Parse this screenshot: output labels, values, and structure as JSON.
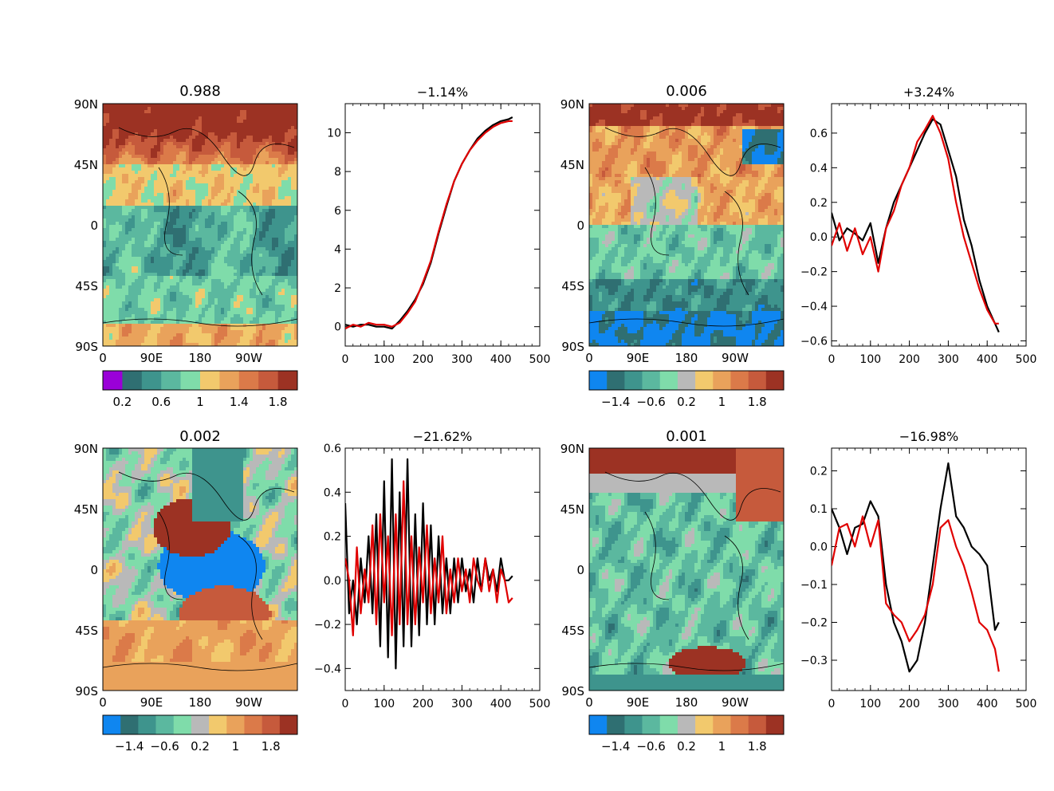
{
  "maps": [
    {
      "title": "0.988",
      "lat_labels": [
        "90N",
        "45N",
        "0",
        "45S",
        "90S"
      ],
      "lon_labels": [
        "0",
        "90E",
        "180",
        "90W"
      ],
      "colorbar": {
        "colors": [
          "#9a00d8",
          "#2f6f72",
          "#3e948d",
          "#5bb89f",
          "#7fdcaa",
          "#f2c96d",
          "#e9a25b",
          "#db7a49",
          "#c65a3c",
          "#9c3223"
        ],
        "tick_labels": [
          "0.2",
          "0.6",
          "1",
          "1.4",
          "1.8"
        ]
      },
      "pattern": "map1"
    },
    {
      "title": "0.006",
      "lat_labels": [
        "90N",
        "45N",
        "0",
        "45S",
        "90S"
      ],
      "lon_labels": [
        "0",
        "90E",
        "180",
        "90W"
      ],
      "colorbar": {
        "colors": [
          "#0f86f0",
          "#2f6f72",
          "#3e948d",
          "#5bb89f",
          "#7fdcaa",
          "#b9b9b9",
          "#f2c96d",
          "#e9a25b",
          "#db7a49",
          "#c65a3c",
          "#9c3223"
        ],
        "tick_labels": [
          "−1.4",
          "−0.6",
          "0.2",
          "1",
          "1.8"
        ]
      },
      "pattern": "map2"
    },
    {
      "title": "0.002",
      "lat_labels": [
        "90N",
        "45N",
        "0",
        "45S",
        "90S"
      ],
      "lon_labels": [
        "0",
        "90E",
        "180",
        "90W"
      ],
      "colorbar": {
        "colors": [
          "#0f86f0",
          "#2f6f72",
          "#3e948d",
          "#5bb89f",
          "#7fdcaa",
          "#b9b9b9",
          "#f2c96d",
          "#e9a25b",
          "#db7a49",
          "#c65a3c",
          "#9c3223"
        ],
        "tick_labels": [
          "−1.4",
          "−0.6",
          "0.2",
          "1",
          "1.8"
        ]
      },
      "pattern": "map3"
    },
    {
      "title": "0.001",
      "lat_labels": [
        "90N",
        "45N",
        "0",
        "45S",
        "90S"
      ],
      "lon_labels": [
        "0",
        "90E",
        "180",
        "90W"
      ],
      "colorbar": {
        "colors": [
          "#0f86f0",
          "#2f6f72",
          "#3e948d",
          "#5bb89f",
          "#7fdcaa",
          "#b9b9b9",
          "#f2c96d",
          "#e9a25b",
          "#db7a49",
          "#c65a3c",
          "#9c3223"
        ],
        "tick_labels": [
          "−1.4",
          "−0.6",
          "0.2",
          "1",
          "1.8"
        ]
      },
      "pattern": "map4"
    }
  ],
  "chart_data": [
    {
      "type": "line",
      "title": "−1.14%",
      "xlim": [
        0,
        500
      ],
      "ylim": [
        -1,
        11.5
      ],
      "x_ticks": [
        0,
        100,
        200,
        300,
        400,
        500
      ],
      "y_ticks": [
        0,
        2,
        4,
        6,
        8,
        10
      ],
      "x_tick_labels": [
        "0",
        "100",
        "200",
        "300",
        "400",
        "500"
      ],
      "y_tick_labels": [
        "0",
        "2",
        "4",
        "6",
        "8",
        "10"
      ],
      "series": [
        {
          "name": "black",
          "color": "#000000",
          "x": [
            0,
            20,
            40,
            60,
            80,
            100,
            120,
            140,
            160,
            180,
            200,
            220,
            240,
            260,
            280,
            300,
            320,
            340,
            360,
            380,
            400,
            420,
            430
          ],
          "values": [
            0.1,
            0.0,
            0.1,
            0.1,
            0.0,
            0.0,
            -0.1,
            0.3,
            0.8,
            1.4,
            2.2,
            3.3,
            4.8,
            6.2,
            7.5,
            8.4,
            9.1,
            9.7,
            10.1,
            10.4,
            10.6,
            10.7,
            10.8
          ]
        },
        {
          "name": "red",
          "color": "#e00000",
          "x": [
            0,
            20,
            40,
            60,
            80,
            100,
            120,
            140,
            160,
            180,
            200,
            220,
            240,
            260,
            280,
            300,
            320,
            340,
            360,
            380,
            400,
            420,
            430
          ],
          "values": [
            -0.1,
            0.1,
            0.0,
            0.2,
            0.1,
            0.1,
            0.0,
            0.2,
            0.7,
            1.3,
            2.3,
            3.4,
            4.9,
            6.3,
            7.5,
            8.4,
            9.1,
            9.6,
            10.0,
            10.3,
            10.5,
            10.6,
            10.6
          ]
        }
      ],
      "xlabel": "",
      "ylabel": ""
    },
    {
      "type": "line",
      "title": "+3.24%",
      "xlim": [
        0,
        500
      ],
      "ylim": [
        -0.63,
        0.77
      ],
      "x_ticks": [
        0,
        100,
        200,
        300,
        400,
        500
      ],
      "y_ticks": [
        -0.6,
        -0.4,
        -0.2,
        0.0,
        0.2,
        0.4,
        0.6
      ],
      "x_tick_labels": [
        "0",
        "100",
        "200",
        "300",
        "400",
        "500"
      ],
      "y_tick_labels": [
        "−0.6",
        "−0.4",
        "−0.2",
        "0.0",
        "0.2",
        "0.4",
        "0.6"
      ],
      "series": [
        {
          "name": "black",
          "color": "#000000",
          "x": [
            0,
            20,
            40,
            60,
            80,
            100,
            120,
            140,
            160,
            180,
            200,
            220,
            240,
            260,
            280,
            300,
            320,
            340,
            360,
            380,
            400,
            420,
            430
          ],
          "values": [
            0.14,
            -0.02,
            0.05,
            0.02,
            -0.02,
            0.08,
            -0.15,
            0.05,
            0.2,
            0.3,
            0.4,
            0.5,
            0.6,
            0.68,
            0.65,
            0.5,
            0.35,
            0.1,
            -0.05,
            -0.25,
            -0.4,
            -0.5,
            -0.55
          ]
        },
        {
          "name": "red",
          "color": "#e00000",
          "x": [
            0,
            20,
            40,
            60,
            80,
            100,
            120,
            140,
            160,
            180,
            200,
            220,
            240,
            260,
            280,
            300,
            320,
            340,
            360,
            380,
            400,
            420,
            430
          ],
          "values": [
            -0.05,
            0.08,
            -0.08,
            0.05,
            -0.1,
            0.0,
            -0.2,
            0.05,
            0.15,
            0.3,
            0.4,
            0.55,
            0.62,
            0.7,
            0.6,
            0.45,
            0.2,
            0.0,
            -0.15,
            -0.3,
            -0.42,
            -0.5,
            -0.5
          ]
        }
      ],
      "xlabel": "",
      "ylabel": ""
    },
    {
      "type": "line",
      "title": "−21.62%",
      "xlim": [
        0,
        500
      ],
      "ylim": [
        -0.5,
        0.6
      ],
      "x_ticks": [
        0,
        100,
        200,
        300,
        400,
        500
      ],
      "y_ticks": [
        -0.4,
        -0.2,
        0.0,
        0.2,
        0.4,
        0.6
      ],
      "x_tick_labels": [
        "0",
        "100",
        "200",
        "300",
        "400",
        "500"
      ],
      "y_tick_labels": [
        "−0.4",
        "−0.2",
        "0.0",
        "0.2",
        "0.4",
        "0.6"
      ],
      "series": [
        {
          "name": "black",
          "color": "#000000",
          "x": [
            0,
            10,
            20,
            30,
            40,
            50,
            60,
            70,
            80,
            90,
            100,
            110,
            120,
            130,
            140,
            150,
            160,
            170,
            180,
            190,
            200,
            210,
            220,
            230,
            240,
            250,
            260,
            270,
            280,
            290,
            300,
            310,
            320,
            330,
            340,
            350,
            360,
            370,
            380,
            390,
            400,
            410,
            420,
            430
          ],
          "values": [
            0.35,
            -0.15,
            0.0,
            -0.2,
            0.1,
            -0.1,
            0.2,
            -0.15,
            0.3,
            -0.3,
            0.45,
            -0.35,
            0.55,
            -0.4,
            0.4,
            -0.3,
            0.55,
            -0.3,
            0.3,
            -0.25,
            0.35,
            -0.2,
            0.25,
            -0.2,
            0.2,
            -0.15,
            0.1,
            -0.15,
            0.1,
            -0.1,
            0.1,
            -0.05,
            0.05,
            -0.1,
            0.1,
            -0.05,
            0.1,
            0.0,
            0.05,
            -0.05,
            0.1,
            0.0,
            0.0,
            0.02
          ]
        },
        {
          "name": "red",
          "color": "#e00000",
          "x": [
            0,
            10,
            20,
            30,
            40,
            50,
            60,
            70,
            80,
            90,
            100,
            110,
            120,
            130,
            140,
            150,
            160,
            170,
            180,
            190,
            200,
            210,
            220,
            230,
            240,
            250,
            260,
            270,
            280,
            290,
            300,
            310,
            320,
            330,
            340,
            350,
            360,
            370,
            380,
            390,
            400,
            410,
            420,
            430
          ],
          "values": [
            0.1,
            0.0,
            -0.25,
            0.15,
            -0.15,
            0.05,
            -0.1,
            0.25,
            -0.2,
            0.3,
            -0.1,
            0.2,
            -0.25,
            0.3,
            -0.2,
            0.45,
            -0.2,
            0.2,
            -0.2,
            0.15,
            -0.1,
            0.25,
            -0.15,
            0.1,
            -0.1,
            0.2,
            -0.15,
            0.05,
            -0.1,
            0.1,
            -0.05,
            0.05,
            -0.1,
            0.1,
            0.0,
            -0.05,
            0.1,
            -0.05,
            0.05,
            -0.1,
            0.05,
            0.0,
            -0.1,
            -0.08
          ]
        }
      ],
      "xlabel": "",
      "ylabel": ""
    },
    {
      "type": "line",
      "title": "−16.98%",
      "xlim": [
        0,
        500
      ],
      "ylim": [
        -0.38,
        0.26
      ],
      "x_ticks": [
        0,
        100,
        200,
        300,
        400,
        500
      ],
      "y_ticks": [
        -0.3,
        -0.2,
        -0.1,
        0.0,
        0.1,
        0.2
      ],
      "x_tick_labels": [
        "0",
        "100",
        "200",
        "300",
        "400",
        "500"
      ],
      "y_tick_labels": [
        "−0.3",
        "−0.2",
        "−0.1",
        "0.0",
        "0.1",
        "0.2"
      ],
      "series": [
        {
          "name": "black",
          "color": "#000000",
          "x": [
            0,
            20,
            40,
            60,
            80,
            100,
            120,
            140,
            160,
            180,
            200,
            220,
            240,
            260,
            280,
            300,
            320,
            340,
            360,
            380,
            400,
            420,
            430
          ],
          "values": [
            0.1,
            0.05,
            -0.02,
            0.05,
            0.06,
            0.12,
            0.08,
            -0.1,
            -0.2,
            -0.25,
            -0.33,
            -0.3,
            -0.2,
            -0.05,
            0.1,
            0.22,
            0.08,
            0.05,
            0.0,
            -0.02,
            -0.05,
            -0.22,
            -0.2
          ]
        },
        {
          "name": "red",
          "color": "#e00000",
          "x": [
            0,
            20,
            40,
            60,
            80,
            100,
            120,
            140,
            160,
            180,
            200,
            220,
            240,
            260,
            280,
            300,
            320,
            340,
            360,
            380,
            400,
            420,
            430
          ],
          "values": [
            -0.05,
            0.05,
            0.06,
            0.0,
            0.08,
            0.0,
            0.07,
            -0.15,
            -0.18,
            -0.2,
            -0.25,
            -0.22,
            -0.18,
            -0.1,
            0.05,
            0.07,
            0.0,
            -0.05,
            -0.12,
            -0.2,
            -0.22,
            -0.27,
            -0.33
          ]
        }
      ],
      "xlabel": "",
      "ylabel": ""
    }
  ]
}
